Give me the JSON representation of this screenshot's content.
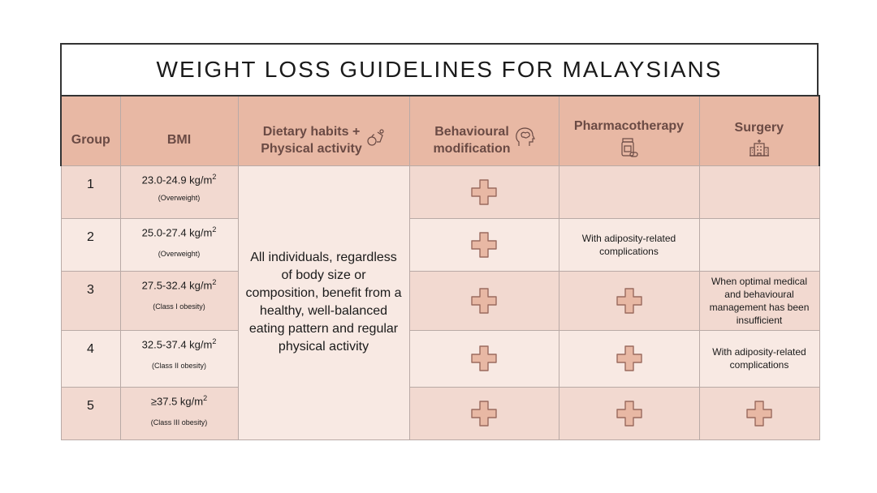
{
  "title": "WEIGHT LOSS GUIDELINES FOR MALAYSIANS",
  "headers": {
    "group": "Group",
    "bmi": "BMI",
    "diet_line1": "Dietary habits +",
    "diet_line2": "Physical activity",
    "behaviour_line1": "Behavioural",
    "behaviour_line2": "modification",
    "pharma": "Pharmacotherapy",
    "surgery": "Surgery"
  },
  "icons": {
    "diet": "apple-fitness-icon",
    "behaviour": "brain-head-icon",
    "pharma": "pill-bottle-icon",
    "surgery": "hospital-icon"
  },
  "colors": {
    "header_bg": "#e8b8a4",
    "header_text": "#6a4a44",
    "row_light": "#f8e9e3",
    "row_dark": "#f2d9d0",
    "cross_fill": "#e8b8a4",
    "cross_stroke": "#9a6a5e"
  },
  "diet_text": "All individuals, regardless of body size or composition, benefit from a healthy, well-balanced eating pattern and regular physical activity",
  "rows": [
    {
      "group": "1",
      "bmi": "23.0-24.9 kg/m",
      "bmi_class": "(Overweight)",
      "behavioural": true,
      "pharma": "",
      "pharma_cross": false,
      "surgery": "",
      "surgery_cross": false
    },
    {
      "group": "2",
      "bmi": "25.0-27.4 kg/m",
      "bmi_class": "(Overweight)",
      "behavioural": true,
      "pharma": "With adiposity-related complications",
      "pharma_cross": false,
      "surgery": "",
      "surgery_cross": false
    },
    {
      "group": "3",
      "bmi": "27.5-32.4 kg/m",
      "bmi_class": "(Class I obesity)",
      "behavioural": true,
      "pharma": "",
      "pharma_cross": true,
      "surgery": "When optimal medical and behavioural management has been insufficient",
      "surgery_cross": false
    },
    {
      "group": "4",
      "bmi": "32.5-37.4 kg/m",
      "bmi_class": "(Class II obesity)",
      "behavioural": true,
      "pharma": "",
      "pharma_cross": true,
      "surgery": "With adiposity-related complications",
      "surgery_cross": false
    },
    {
      "group": "5",
      "bmi": "≥37.5 kg/m",
      "bmi_class": "(Class III obesity)",
      "behavioural": true,
      "pharma": "",
      "pharma_cross": true,
      "surgery": "",
      "surgery_cross": true
    }
  ],
  "superscript": "2"
}
